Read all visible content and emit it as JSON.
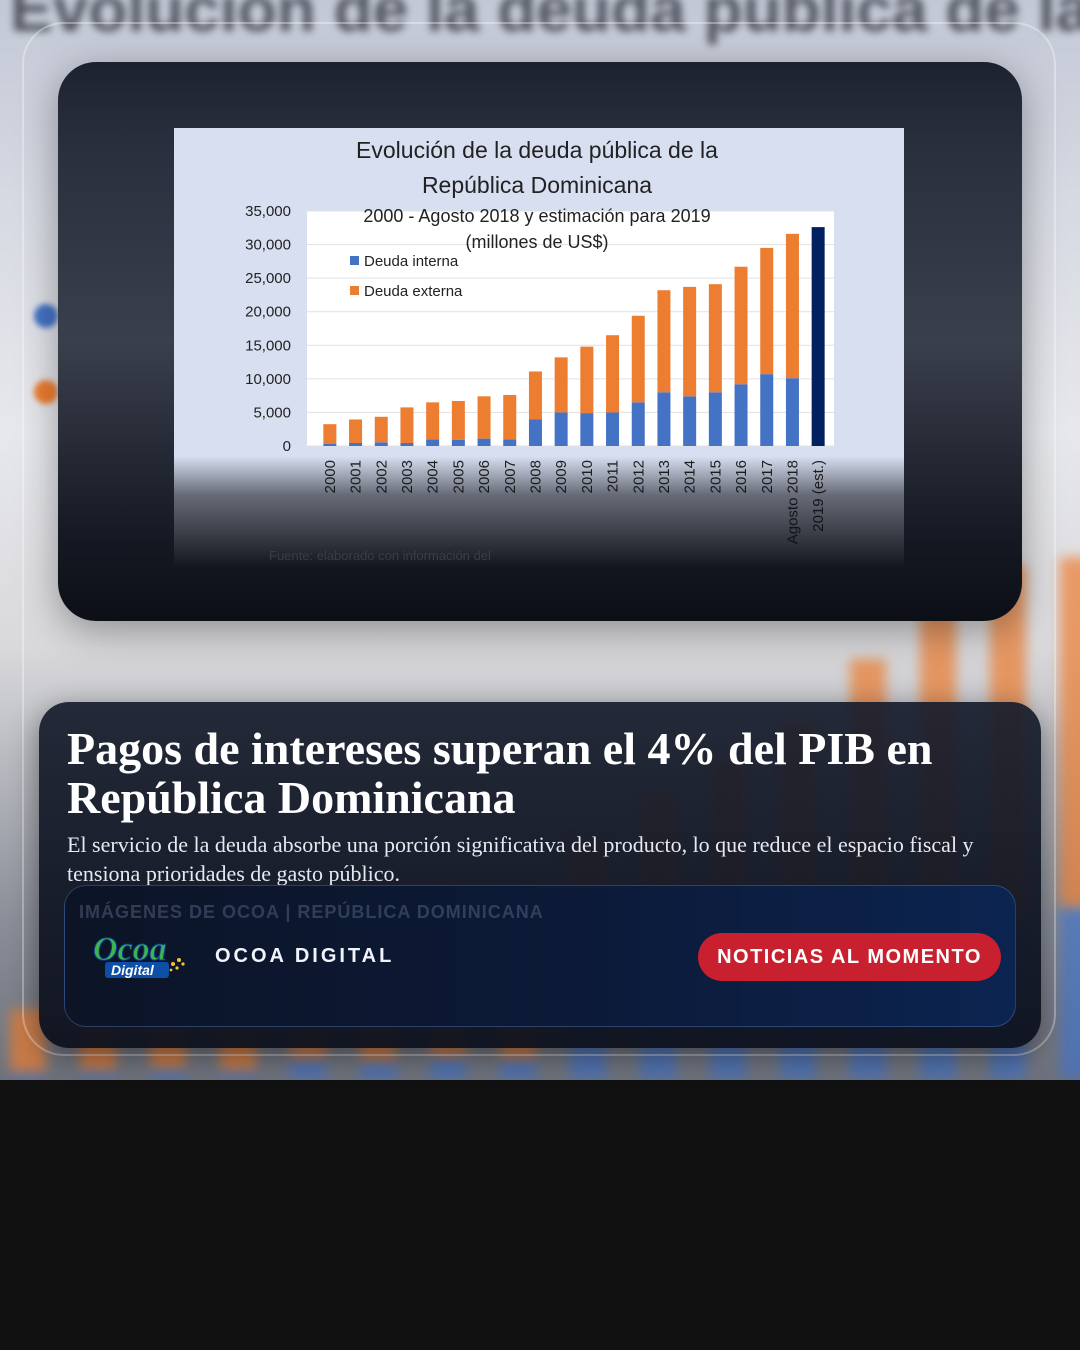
{
  "backdrop": {
    "title_fragment": "Evolución de la deuda pública de la"
  },
  "colors": {
    "internal_debt": "#4472c4",
    "external_debt": "#ed7d31",
    "estimate": "#002060",
    "cta_background": "#c8202f"
  },
  "chart_data": {
    "type": "bar",
    "stacked": true,
    "title": "Evolución de la deuda pública de la República Dominicana",
    "title_lines": [
      "Evolución de la deuda pública de la",
      "República Dominicana"
    ],
    "subtitle_lines": [
      "2000 - Agosto 2018 y estimación para 2019",
      "(millones de US$)"
    ],
    "categories": [
      "2000",
      "2001",
      "2002",
      "2003",
      "2004",
      "2005",
      "2006",
      "2007",
      "2008",
      "2009",
      "2010",
      "2011",
      "2012",
      "2013",
      "2014",
      "2015",
      "2016",
      "2017",
      "Agosto 2018",
      "2019 (est.)"
    ],
    "series": [
      {
        "name": "Deuda interna",
        "color": "#4472c4",
        "values": [
          350,
          450,
          550,
          450,
          1000,
          900,
          1100,
          1000,
          4000,
          5000,
          4900,
          5000,
          6500,
          8000,
          7400,
          8000,
          9200,
          10700,
          10100,
          null
        ]
      },
      {
        "name": "Deuda externa",
        "color": "#ed7d31",
        "values": [
          2900,
          3500,
          3800,
          5300,
          5500,
          5800,
          6300,
          6600,
          7100,
          8200,
          9900,
          11500,
          12900,
          15200,
          16300,
          16100,
          17500,
          18800,
          21500,
          null
        ]
      }
    ],
    "estimate": {
      "category": "2019 (est.)",
      "value": 32600,
      "color": "#002060"
    },
    "ylim": [
      0,
      35000
    ],
    "yticks": [
      "35,000",
      "30,000",
      "25,000",
      "20,000",
      "15,000",
      "10,000",
      "5,000",
      "0"
    ],
    "legend_position": "top-left",
    "source_note": "Fuente: elaborado con información del"
  },
  "article": {
    "headline": "Pagos de intereses superan el 4% del PIB en República Dominicana",
    "summary": "El servicio de la deuda absorbe una porción significativa del producto, lo que reduce el espacio fiscal y tensiona prioridades de gasto público.",
    "byline": "IMÁGENES DE OCOA | REPÚBLICA DOMINICANA"
  },
  "brand": {
    "logo_word": "Ocoa",
    "logo_sub": "Digital",
    "name": "OCOA DIGITAL",
    "cta_label": "NOTICIAS AL MOMENTO"
  }
}
